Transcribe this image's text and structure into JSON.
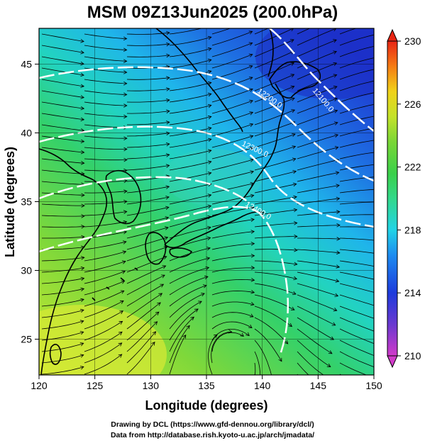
{
  "title": "MSM 09Z13Jun2025 (200.0hPa)",
  "axes": {
    "xlabel": "Longitude (degrees)",
    "ylabel": "Latitude  (degrees)",
    "xlim": [
      120,
      150
    ],
    "ylim": [
      22.4,
      47.6
    ],
    "xticks": [
      120,
      125,
      130,
      135,
      140,
      145,
      150
    ],
    "yticks": [
      25,
      30,
      35,
      40,
      45
    ]
  },
  "colorbar": {
    "min": 210,
    "max": 230,
    "labels": [
      "230",
      "226",
      "222",
      "218",
      "214",
      "210"
    ],
    "label_values": [
      230,
      226,
      222,
      218,
      214,
      210
    ],
    "colors": [
      "#d13ac9",
      "#6a3ad0",
      "#1d3bdc",
      "#1d8cf0",
      "#22d3e6",
      "#33d88a",
      "#3bd04a",
      "#7ad636",
      "#c4e22a",
      "#f0d21a",
      "#f57c14",
      "#e82514"
    ]
  },
  "contour_labels": [
    "12100.0",
    "12200.0",
    "12300.0",
    "12400.0"
  ],
  "footer": {
    "line1": "Drawing by DCL (https://www.gfd-dennou.org/library/dcl/)",
    "line2": "Data from http://database.rish.kyoto-u.ac.jp/arch/jmadata/"
  }
}
